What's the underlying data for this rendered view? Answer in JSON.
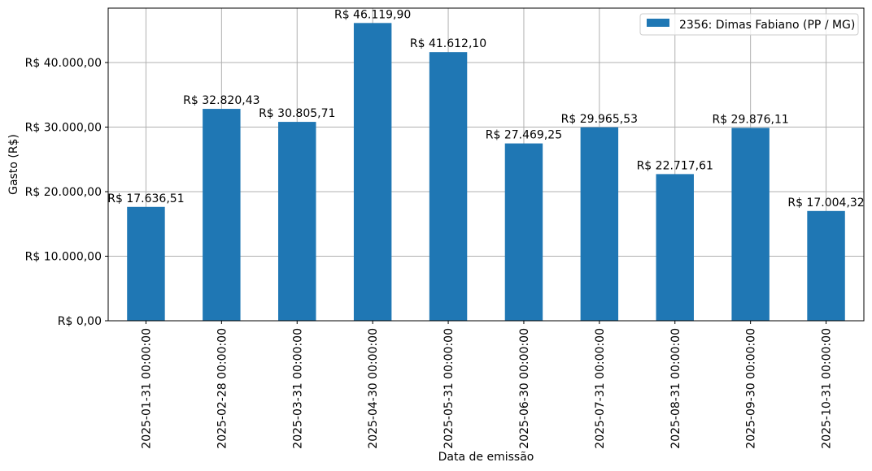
{
  "chart_data": {
    "type": "bar",
    "title": "",
    "xlabel": "Data de emissão",
    "ylabel": "Gasto (R$)",
    "categories": [
      "2025-01-31 00:00:00",
      "2025-02-28 00:00:00",
      "2025-03-31 00:00:00",
      "2025-04-30 00:00:00",
      "2025-05-31 00:00:00",
      "2025-06-30 00:00:00",
      "2025-07-31 00:00:00",
      "2025-08-31 00:00:00",
      "2025-09-30 00:00:00",
      "2025-10-31 00:00:00"
    ],
    "series": [
      {
        "name": "2356: Dimas Fabiano (PP / MG)",
        "values": [
          17636.51,
          32820.43,
          30805.71,
          46119.9,
          41612.1,
          27469.25,
          29965.53,
          22717.61,
          29876.11,
          17004.32
        ],
        "labels": [
          "R$ 17.636,51",
          "R$ 32.820,43",
          "R$ 30.805,71",
          "R$ 46.119,90",
          "R$ 41.612,10",
          "R$ 27.469,25",
          "R$ 29.965,53",
          "R$ 22.717,61",
          "R$ 29.876,11",
          "R$ 17.004,32"
        ]
      }
    ],
    "ylim": [
      0,
      48425
    ],
    "yticks": [
      0,
      10000,
      20000,
      30000,
      40000
    ],
    "ytick_labels": [
      "R$ 0,00",
      "R$ 10.000,00",
      "R$ 20.000,00",
      "R$ 30.000,00",
      "R$ 40.000,00"
    ],
    "grid": true,
    "legend_position": "top-right",
    "colors": {
      "bar": "#1f77b4",
      "grid": "#b0b0b0",
      "axis": "#000000"
    }
  }
}
